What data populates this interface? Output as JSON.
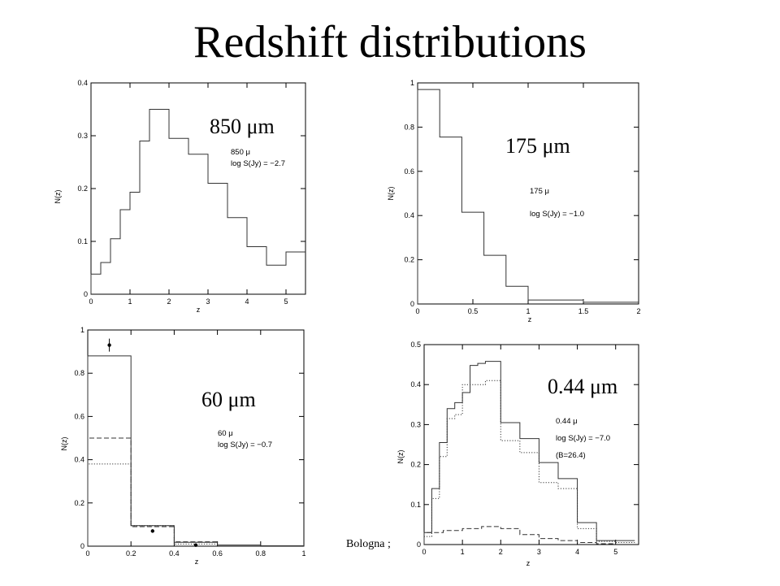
{
  "slide": {
    "title": "Redshift distributions",
    "footer": "Bologna ;"
  },
  "chart_data": [
    {
      "type": "line",
      "id": "p850",
      "big_label": "850 μm",
      "annotations": [
        "850 μ",
        "log S(Jy) = −2.7"
      ],
      "xlabel": "z",
      "ylabel": "N(z)",
      "xlim": [
        0,
        5.5
      ],
      "ylim": [
        0,
        0.4
      ],
      "xticks": [
        0,
        1,
        2,
        3,
        4,
        5
      ],
      "yticks": [
        0,
        0.1,
        0.2,
        0.3,
        0.4
      ],
      "series": [
        {
          "style": "solid",
          "bins": [
            0,
            0.25,
            0.5,
            0.75,
            1.0,
            1.25,
            1.5,
            2.0,
            2.5,
            3.0,
            3.5,
            4.0,
            4.5,
            5.0,
            5.5
          ],
          "values": [
            0.038,
            0.06,
            0.105,
            0.16,
            0.193,
            0.29,
            0.35,
            0.295,
            0.265,
            0.21,
            0.145,
            0.09,
            0.055,
            0.08
          ]
        }
      ]
    },
    {
      "type": "line",
      "id": "p175",
      "big_label": "175 μm",
      "annotations": [
        "175 μ",
        "log S(Jy) = −1.0"
      ],
      "xlabel": "z",
      "ylabel": "N(z)",
      "xlim": [
        0,
        2
      ],
      "ylim": [
        0,
        1
      ],
      "xticks": [
        0,
        0.5,
        1,
        1.5,
        2
      ],
      "yticks": [
        0,
        0.2,
        0.4,
        0.6,
        0.8,
        1
      ],
      "series": [
        {
          "style": "solid",
          "bins": [
            0,
            0.2,
            0.4,
            0.6,
            0.8,
            1.0,
            1.5,
            2.0
          ],
          "values": [
            0.97,
            0.755,
            0.415,
            0.22,
            0.08,
            0.018,
            0.008
          ]
        }
      ]
    },
    {
      "type": "line",
      "id": "p60",
      "big_label": "60 μm",
      "annotations": [
        "60 μ",
        "log S(Jy) = −0.7"
      ],
      "xlabel": "z",
      "ylabel": "N(z)",
      "xlim": [
        0,
        1
      ],
      "ylim": [
        0,
        1
      ],
      "xticks": [
        0,
        0.2,
        0.4,
        0.6,
        0.8,
        1
      ],
      "yticks": [
        0,
        0.2,
        0.4,
        0.6,
        0.8,
        1
      ],
      "series": [
        {
          "style": "solid",
          "bins": [
            0,
            0.2,
            0.4,
            0.6,
            0.8,
            1.0
          ],
          "values": [
            0.88,
            0.095,
            0.018,
            0.005,
            0.002
          ]
        },
        {
          "style": "dashed",
          "bins": [
            0,
            0.2,
            0.4,
            0.6
          ],
          "values": [
            0.5,
            0.09,
            0.02
          ]
        },
        {
          "style": "dotted",
          "bins": [
            0,
            0.2,
            0.4,
            0.6
          ],
          "values": [
            0.38,
            0.095,
            0.01
          ]
        }
      ],
      "points": [
        {
          "x": 0.1,
          "y": 0.93,
          "err": 0.03
        },
        {
          "x": 0.3,
          "y": 0.07,
          "err": 0
        },
        {
          "x": 0.5,
          "y": 0.005,
          "err": 0
        }
      ]
    },
    {
      "type": "line",
      "id": "p044",
      "big_label": "0.44 μm",
      "annotations": [
        "0.44 μ",
        "log S(Jy) = −7.0",
        "(B=26.4)"
      ],
      "xlabel": "z",
      "ylabel": "N(z)",
      "xlim": [
        0,
        5.6
      ],
      "ylim": [
        0,
        0.5
      ],
      "xticks": [
        0,
        1,
        2,
        3,
        4,
        5
      ],
      "yticks": [
        0,
        0.1,
        0.2,
        0.3,
        0.4,
        0.5
      ],
      "series": [
        {
          "style": "solid",
          "bins": [
            0,
            0.2,
            0.4,
            0.6,
            0.8,
            1.0,
            1.2,
            1.4,
            1.6,
            2.0,
            2.5,
            3.0,
            3.5,
            4.0,
            4.5,
            5.0,
            5.5
          ],
          "values": [
            0.03,
            0.14,
            0.255,
            0.34,
            0.355,
            0.38,
            0.448,
            0.453,
            0.458,
            0.305,
            0.265,
            0.205,
            0.165,
            0.055,
            0.01,
            0.01
          ]
        },
        {
          "style": "dotted",
          "bins": [
            0,
            0.2,
            0.4,
            0.6,
            0.8,
            1.0,
            1.2,
            1.4,
            1.6,
            2.0,
            2.5,
            3.0,
            3.5,
            4.0,
            4.5,
            5.0,
            5.5
          ],
          "values": [
            0.02,
            0.115,
            0.22,
            0.315,
            0.325,
            0.4,
            0.4,
            0.4,
            0.41,
            0.26,
            0.23,
            0.155,
            0.14,
            0.04,
            0.008,
            0.005
          ]
        },
        {
          "style": "dashed",
          "bins": [
            0,
            0.5,
            1.0,
            1.5,
            2.0,
            2.5,
            3.0,
            3.5,
            4.0,
            4.5,
            5.0
          ],
          "values": [
            0.03,
            0.035,
            0.04,
            0.045,
            0.04,
            0.025,
            0.015,
            0.01,
            0.005,
            0.002
          ]
        }
      ]
    }
  ]
}
